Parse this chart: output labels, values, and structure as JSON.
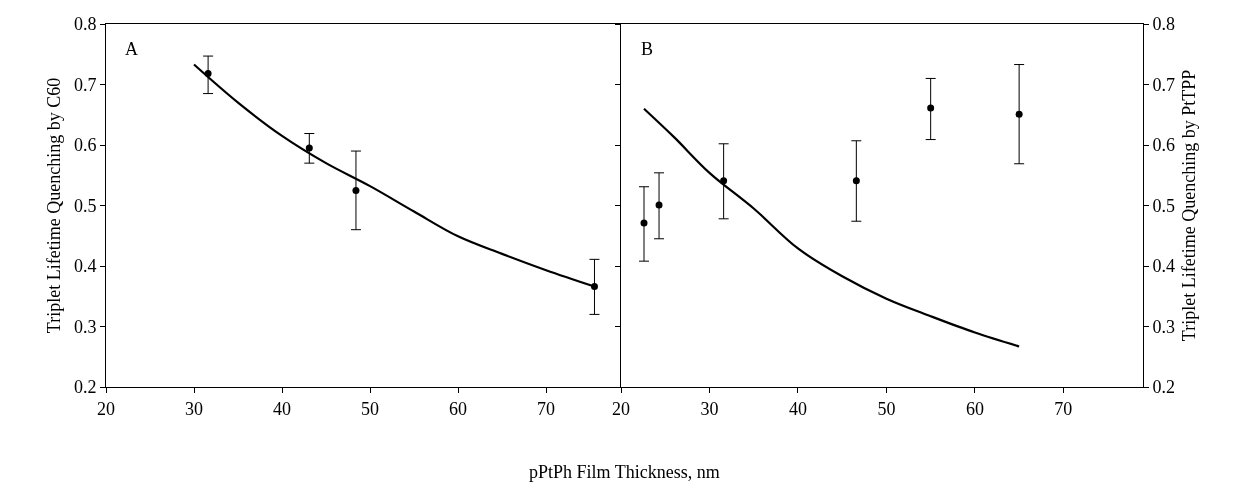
{
  "chart_data": [
    {
      "type": "scatter",
      "xlabel": "pPtPh Film Thickness, nm",
      "ylabel": "Triplet Lifetime Quenching by C60",
      "annotations": [
        "A"
      ],
      "xlim": [
        20,
        78.4
      ],
      "xticks": [
        20,
        30,
        40,
        50,
        60,
        70
      ],
      "ylim": [
        0.2,
        0.8
      ],
      "yticks": [
        0.2,
        0.3,
        0.4,
        0.5,
        0.6,
        0.7,
        0.8
      ],
      "series": [
        {
          "type": "scatter",
          "color": "#000000",
          "marker": "circle",
          "x": [
            31.6,
            43.1,
            48.4,
            75.5
          ],
          "values": [
            0.718,
            0.595,
            0.525,
            0.366
          ],
          "errors": [
            [
              0.685,
              0.747
            ],
            [
              0.57,
              0.619
            ],
            [
              0.46,
              0.59
            ],
            [
              0.32,
              0.411
            ]
          ]
        },
        {
          "type": "line",
          "color": "#000000",
          "marker": "none",
          "x": [
            30,
            35,
            40,
            45,
            50,
            55,
            60,
            65,
            70,
            75.5
          ],
          "values": [
            0.733,
            0.67,
            0.615,
            0.57,
            0.532,
            0.49,
            0.449,
            0.42,
            0.393,
            0.366
          ]
        }
      ]
    },
    {
      "type": "scatter",
      "y2label": "Triplet Lifetime Quenching by PtTPP",
      "annotations": [
        "B"
      ],
      "xlim": [
        20,
        79
      ],
      "xticks": [
        20,
        30,
        40,
        50,
        60,
        70
      ],
      "y2lim": [
        0.2,
        0.8
      ],
      "y2ticks": [
        0.2,
        0.3,
        0.4,
        0.5,
        0.6,
        0.7,
        0.8
      ],
      "series": [
        {
          "type": "scatter",
          "axis": "y2",
          "color": "#000000",
          "marker": "circle",
          "x": [
            22.6,
            24.3,
            31.6,
            46.6,
            55.0,
            65.0
          ],
          "values": [
            0.471,
            0.501,
            0.541,
            0.541,
            0.661,
            0.651
          ],
          "errors": [
            [
              0.408,
              0.531
            ],
            [
              0.445,
              0.554
            ],
            [
              0.478,
              0.602
            ],
            [
              0.474,
              0.607
            ],
            [
              0.609,
              0.71
            ],
            [
              0.569,
              0.733
            ]
          ]
        },
        {
          "type": "line",
          "axis": "y2",
          "color": "#000000",
          "marker": "none",
          "x": [
            22.6,
            26,
            30,
            35,
            40,
            45,
            50,
            55,
            60,
            65
          ],
          "values": [
            0.66,
            0.613,
            0.554,
            0.495,
            0.429,
            0.383,
            0.346,
            0.317,
            0.29,
            0.267
          ]
        }
      ]
    }
  ]
}
